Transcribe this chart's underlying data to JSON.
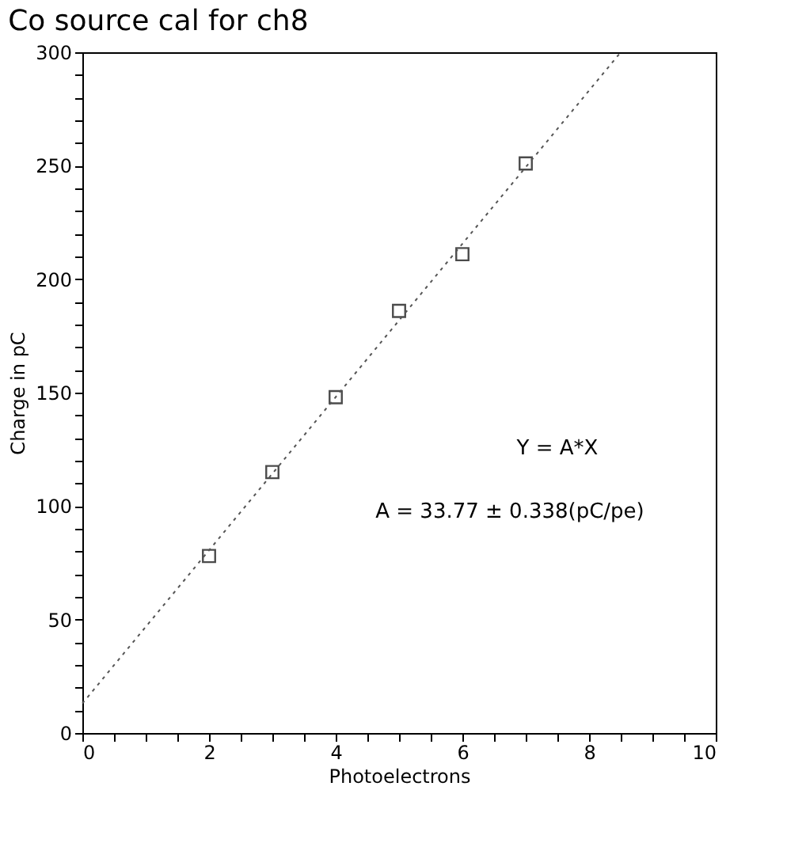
{
  "chart_data": {
    "type": "scatter",
    "title": "Co source cal for ch8",
    "xlabel": "Photoelectrons",
    "ylabel": "Charge in pC",
    "annotations": [
      "Y = A*X",
      "A = 33.77 ± 0.338(pC/pe)"
    ],
    "series": [
      {
        "color": "#000000",
        "marker": "square",
        "x": [
          2,
          3,
          4,
          5,
          6,
          7
        ],
        "values": [
          78,
          115,
          148,
          186,
          211,
          251
        ]
      },
      {
        "type": "line",
        "color": "#555555",
        "marker": "none",
        "line_style": "dotted",
        "x": [
          0,
          8.5
        ],
        "values": [
          13,
          300
        ]
      }
    ],
    "xlim": [
      0,
      10
    ],
    "ylim": [
      0,
      300
    ],
    "xticks": [
      0,
      {
        "value": 0.5,
        "label": null
      },
      {
        "value": 1,
        "label": null
      },
      {
        "value": 1.5,
        "label": null
      },
      2,
      {
        "value": 2.5,
        "label": null
      },
      {
        "value": 3,
        "label": null
      },
      {
        "value": 3.5,
        "label": null
      },
      4,
      {
        "value": 4.5,
        "label": null
      },
      {
        "value": 5,
        "label": null
      },
      {
        "value": 5.5,
        "label": null
      },
      6,
      {
        "value": 6.5,
        "label": null
      },
      {
        "value": 7,
        "label": null
      },
      {
        "value": 7.5,
        "label": null
      },
      8,
      {
        "value": 8.5,
        "label": null
      },
      {
        "value": 9,
        "label": null
      },
      {
        "value": 9.5,
        "label": null
      },
      10
    ],
    "yticks": [
      0,
      {
        "value": 10,
        "label": null
      },
      {
        "value": 20,
        "label": null
      },
      {
        "value": 30,
        "label": null
      },
      {
        "value": 40,
        "label": null
      },
      50,
      {
        "value": 60,
        "label": null
      },
      {
        "value": 70,
        "label": null
      },
      {
        "value": 80,
        "label": null
      },
      {
        "value": 90,
        "label": null
      },
      100,
      {
        "value": 110,
        "label": null
      },
      {
        "value": 120,
        "label": null
      },
      {
        "value": 130,
        "label": null
      },
      {
        "value": 140,
        "label": null
      },
      150,
      {
        "value": 160,
        "label": null
      },
      {
        "value": 170,
        "label": null
      },
      {
        "value": 180,
        "label": null
      },
      {
        "value": 190,
        "label": null
      },
      200,
      {
        "value": 210,
        "label": null
      },
      {
        "value": 220,
        "label": null
      },
      {
        "value": 230,
        "label": null
      },
      {
        "value": 240,
        "label": null
      },
      250,
      {
        "value": 260,
        "label": null
      },
      {
        "value": 270,
        "label": null
      },
      {
        "value": 280,
        "label": null
      },
      {
        "value": 290,
        "label": null
      },
      300
    ],
    "grid": false
  }
}
